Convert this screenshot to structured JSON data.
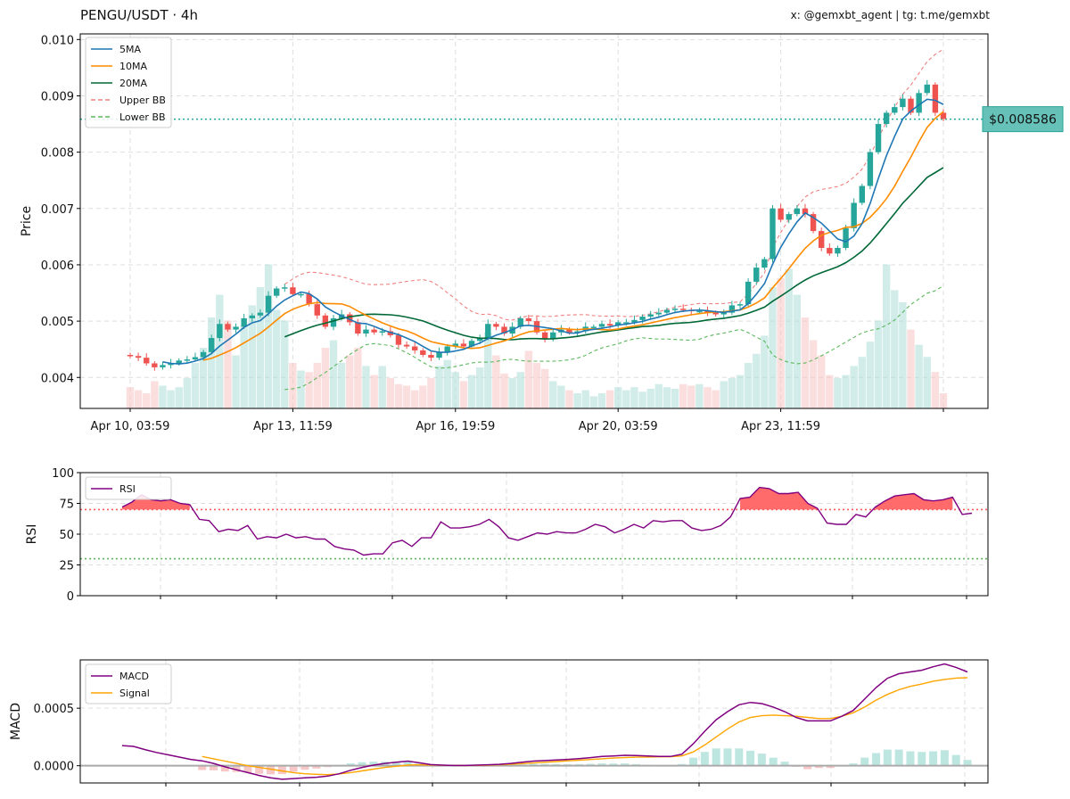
{
  "header": {
    "title": "PENGU/USDT · 4h",
    "credit": "x: @gemxbt_agent | tg: t.me/gemxbt"
  },
  "colors": {
    "up": "#26a69a",
    "down": "#ef5350",
    "ma5": "#1f77b4",
    "ma10": "#ff8c00",
    "ma20": "#006837",
    "upper_bb": "#f08080",
    "lower_bb": "#5cb85c",
    "rsi": "#800080",
    "macd": "#800080",
    "signal": "#ffa500",
    "price_tag": "#66c2b8"
  },
  "chart_data": [
    {
      "type": "candlestick",
      "panel": "price",
      "ylabel": "Price",
      "ylim": [
        0.00345,
        0.0101
      ],
      "yticks": [
        0.004,
        0.005,
        0.006,
        0.007,
        0.008,
        0.009,
        0.01
      ],
      "ytick_labels": [
        "0.004",
        "0.005",
        "0.006",
        "0.007",
        "0.008",
        "0.009",
        "0.010"
      ],
      "xtick_labels": [
        "Apr 10, 03:59",
        "Apr 13, 11:59",
        "Apr 16, 19:59",
        "Apr 20, 03:59",
        "Apr 23, 11:59"
      ],
      "xtick_index": [
        0,
        20,
        40,
        60,
        80
      ],
      "grid": true,
      "legend": {
        "position": "top-left",
        "entries": [
          "5MA",
          "10MA",
          "20MA",
          "Upper BB",
          "Lower BB"
        ]
      },
      "current_price": 0.008586,
      "current_price_label": "$0.008586",
      "close": [
        0.00438,
        0.00435,
        0.00425,
        0.00418,
        0.00422,
        0.00425,
        0.0043,
        0.00432,
        0.00436,
        0.00445,
        0.0047,
        0.00495,
        0.00485,
        0.0049,
        0.00505,
        0.0051,
        0.00515,
        0.00545,
        0.00558,
        0.0056,
        0.00548,
        0.00548,
        0.0053,
        0.0051,
        0.0049,
        0.00505,
        0.00512,
        0.00498,
        0.00478,
        0.00485,
        0.0048,
        0.00482,
        0.00475,
        0.00458,
        0.00455,
        0.00448,
        0.0044,
        0.00435,
        0.00445,
        0.00455,
        0.0046,
        0.00455,
        0.00465,
        0.0047,
        0.00495,
        0.0049,
        0.00478,
        0.0049,
        0.00505,
        0.005,
        0.0048,
        0.00468,
        0.0048,
        0.00485,
        0.0048,
        0.00482,
        0.0049,
        0.0049,
        0.00495,
        0.00492,
        0.00498,
        0.00498,
        0.00502,
        0.00508,
        0.00512,
        0.00515,
        0.0052,
        0.00522,
        0.0052,
        0.00518,
        0.00518,
        0.00515,
        0.00512,
        0.00515,
        0.00528,
        0.0053,
        0.0057,
        0.00595,
        0.0061,
        0.007,
        0.0068,
        0.0069,
        0.007,
        0.0069,
        0.0066,
        0.0063,
        0.0062,
        0.0063,
        0.00665,
        0.0071,
        0.0074,
        0.008,
        0.0085,
        0.0087,
        0.0088,
        0.00895,
        0.0087,
        0.00905,
        0.0092,
        0.0087,
        0.00859
      ],
      "open": [
        0.0044,
        0.00438,
        0.00435,
        0.00425,
        0.00418,
        0.00422,
        0.00425,
        0.0043,
        0.00432,
        0.00436,
        0.00445,
        0.0047,
        0.00495,
        0.00485,
        0.0049,
        0.00505,
        0.0051,
        0.00515,
        0.00545,
        0.00558,
        0.0056,
        0.00548,
        0.00548,
        0.0053,
        0.0051,
        0.0049,
        0.00505,
        0.00512,
        0.00498,
        0.00478,
        0.00485,
        0.0048,
        0.00482,
        0.00475,
        0.00458,
        0.00455,
        0.00448,
        0.0044,
        0.00435,
        0.00445,
        0.00455,
        0.0046,
        0.00455,
        0.00465,
        0.0047,
        0.00495,
        0.0049,
        0.00478,
        0.0049,
        0.00505,
        0.005,
        0.0048,
        0.00468,
        0.0048,
        0.00485,
        0.0048,
        0.00482,
        0.0049,
        0.0049,
        0.00495,
        0.00492,
        0.00498,
        0.00498,
        0.00502,
        0.00508,
        0.00512,
        0.00515,
        0.0052,
        0.00522,
        0.0052,
        0.00518,
        0.00518,
        0.00515,
        0.00512,
        0.00515,
        0.00528,
        0.0053,
        0.0057,
        0.00595,
        0.0061,
        0.007,
        0.0068,
        0.0069,
        0.007,
        0.0069,
        0.0066,
        0.0063,
        0.0062,
        0.0063,
        0.00665,
        0.0071,
        0.0074,
        0.008,
        0.0085,
        0.0087,
        0.0088,
        0.00895,
        0.0087,
        0.00905,
        0.0092,
        0.0087
      ],
      "volume": [
        0.14,
        0.12,
        0.1,
        0.18,
        0.15,
        0.12,
        0.14,
        0.2,
        0.3,
        0.4,
        0.6,
        0.75,
        0.58,
        0.35,
        0.55,
        0.68,
        0.8,
        0.95,
        0.65,
        0.58,
        0.3,
        0.25,
        0.24,
        0.3,
        0.4,
        0.45,
        0.3,
        0.35,
        0.4,
        0.28,
        0.22,
        0.28,
        0.2,
        0.16,
        0.15,
        0.12,
        0.15,
        0.2,
        0.28,
        0.32,
        0.24,
        0.18,
        0.22,
        0.27,
        0.5,
        0.35,
        0.23,
        0.2,
        0.24,
        0.38,
        0.3,
        0.26,
        0.18,
        0.15,
        0.12,
        0.1,
        0.12,
        0.08,
        0.1,
        0.12,
        0.14,
        0.12,
        0.14,
        0.11,
        0.13,
        0.16,
        0.14,
        0.13,
        0.16,
        0.15,
        0.16,
        0.14,
        0.12,
        0.18,
        0.2,
        0.22,
        0.3,
        0.36,
        0.48,
        0.8,
        0.86,
        0.92,
        0.75,
        0.6,
        0.45,
        0.35,
        0.22,
        0.2,
        0.22,
        0.28,
        0.34,
        0.44,
        0.58,
        0.95,
        0.78,
        0.7,
        0.52,
        0.42,
        0.34,
        0.24,
        0.1
      ]
    },
    {
      "type": "line",
      "panel": "rsi",
      "ylabel": "RSI",
      "ylim": [
        0,
        100
      ],
      "yticks": [
        0,
        25,
        50,
        75,
        100
      ],
      "ytick_labels": [
        "0",
        "25",
        "50",
        "75",
        "100"
      ],
      "overbought": 70,
      "oversold": 30,
      "legend": {
        "position": "top-left",
        "entries": [
          "RSI"
        ]
      },
      "series": [
        {
          "name": "RSI",
          "values": [
            72,
            76,
            82,
            78,
            77,
            78,
            75,
            74,
            62,
            61,
            52,
            54,
            53,
            57,
            46,
            48,
            47,
            50,
            47,
            48,
            46,
            46,
            40,
            38,
            37,
            33,
            34,
            34,
            43,
            45,
            40,
            47,
            47,
            60,
            55,
            55,
            56,
            58,
            62,
            56,
            47,
            45,
            48,
            51,
            50,
            52,
            51,
            51,
            54,
            58,
            56,
            51,
            54,
            58,
            55,
            61,
            60,
            61,
            61,
            55,
            53,
            54,
            57,
            64,
            79,
            80,
            88,
            87,
            83,
            83,
            84,
            75,
            71,
            59,
            58,
            58,
            66,
            64,
            72,
            77,
            81,
            82,
            83,
            78,
            77,
            78,
            80,
            66,
            67
          ]
        }
      ]
    },
    {
      "type": "line",
      "panel": "macd",
      "ylabel": "MACD",
      "ylim": [
        -0.00015,
        0.00092
      ],
      "yticks": [
        0.0,
        0.0005
      ],
      "ytick_labels": [
        "0.0000",
        "0.0005"
      ],
      "legend": {
        "position": "top-left",
        "entries": [
          "MACD",
          "Signal"
        ]
      },
      "series": [
        {
          "name": "MACD",
          "values": [
            0.000175,
            0.000168,
            0.00014,
            0.000115,
            9.5e-05,
            7.5e-05,
            5.5e-05,
            4.2e-05,
            2e-05,
            -1e-05,
            -3.5e-05,
            -6e-05,
            -8.5e-05,
            -0.000105,
            -0.000118,
            -0.000112,
            -0.000105,
            -0.0001,
            -9e-05,
            -7e-05,
            -4e-05,
            -1.5e-05,
            5e-06,
            2e-05,
            3e-05,
            4e-05,
            2.5e-05,
            1e-05,
            5e-06,
            2e-06,
            2e-06,
            5e-06,
            8e-06,
            1.2e-05,
            2e-05,
            3e-05,
            4e-05,
            4.5e-05,
            5e-05,
            5.5e-05,
            6.2e-05,
            7e-05,
            8e-05,
            8.5e-05,
            9e-05,
            8.8e-05,
            8.5e-05,
            8e-05,
            8e-05,
            0.0001,
            0.00019,
            0.0003,
            0.0004,
            0.00047,
            0.00053,
            0.00055,
            0.00054,
            0.00051,
            0.00047,
            0.00042,
            0.00039,
            0.00039,
            0.00039,
            0.00043,
            0.00048,
            0.00058,
            0.00068,
            0.00076,
            0.0008,
            0.000815,
            0.00083,
            0.00086,
            0.000885,
            0.000855,
            0.000815
          ]
        },
        {
          "name": "Signal",
          "values": [
            null,
            null,
            null,
            null,
            null,
            null,
            null,
            8e-05,
            6e-05,
            4e-05,
            2e-05,
            0.0,
            -1.5e-05,
            -3e-05,
            -4.5e-05,
            -6e-05,
            -7e-05,
            -7.5e-05,
            -7.8e-05,
            -7.2e-05,
            -6e-05,
            -4.5e-05,
            -3e-05,
            -1.5e-05,
            -5e-06,
            5e-06,
            8e-06,
            6e-06,
            4e-06,
            3e-06,
            2e-06,
            3e-06,
            5e-06,
            8e-06,
            1.2e-05,
            1.8e-05,
            2.4e-05,
            3e-05,
            3.6e-05,
            4.2e-05,
            4.8e-05,
            5.4e-05,
            6e-05,
            6.6e-05,
            7e-05,
            7.4e-05,
            7.6e-05,
            7.7e-05,
            7.8e-05,
            8.5e-05,
            0.00012,
            0.00018,
            0.00025,
            0.00032,
            0.00038,
            0.00042,
            0.000435,
            0.00044,
            0.000435,
            0.00043,
            0.00042,
            0.00041,
            0.00041,
            0.00043,
            0.00046,
            0.00051,
            0.00057,
            0.00062,
            0.00066,
            0.00069,
            0.00071,
            0.000735,
            0.00075,
            0.000762,
            0.000765
          ]
        }
      ]
    }
  ]
}
